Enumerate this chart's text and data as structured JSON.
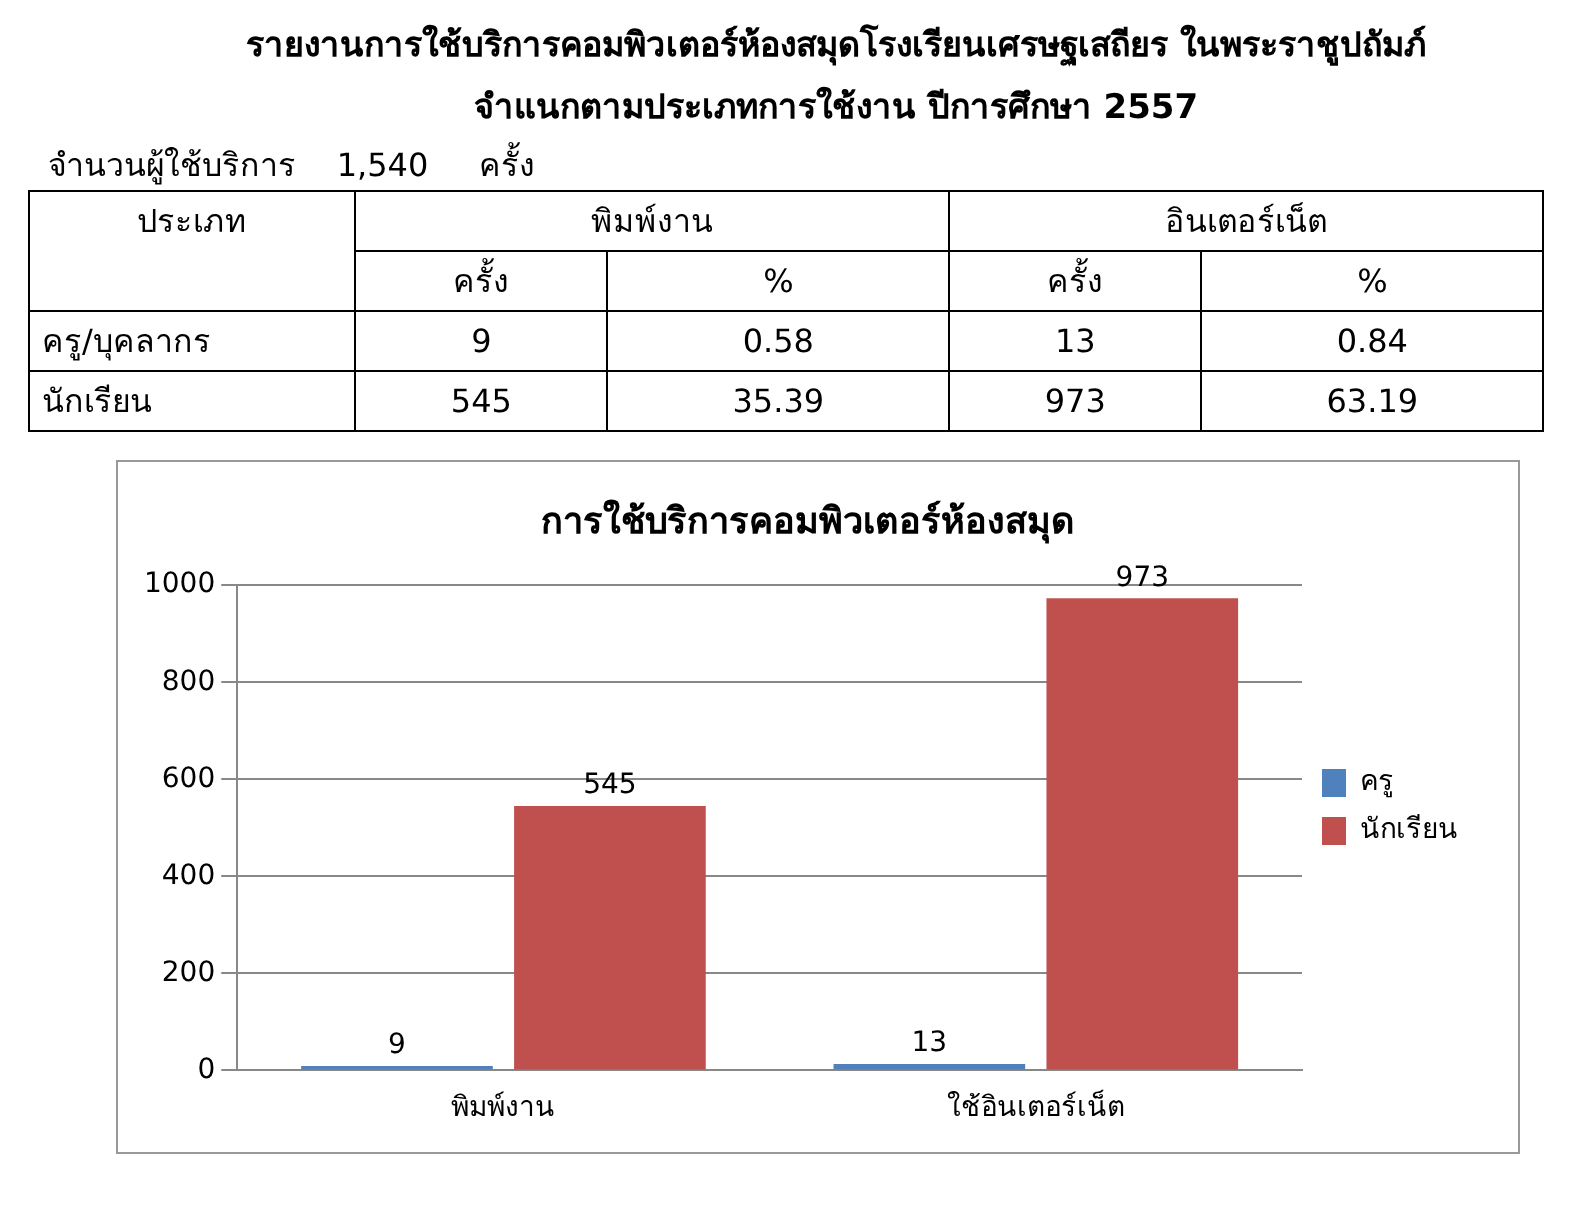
{
  "chart_data": [
    {
      "type": "other",
      "title": "รายงานการใช้บริการคอมพิวเตอร์ห้องสมุดโรงเรียนเศรษฐเสถียร  ในพระราชูปถัมภ์",
      "subtitle": "จำแนกตามประเภทการใช้งาน ปีการศึกษา 2557",
      "annotations": [
        "จำนวนผู้ใช้บริการ    1,540     ครั้ง",
        "ประเภท",
        "พิมพ์งาน",
        "อินเตอร์เน็ต",
        "ครั้ง",
        "%",
        "ครั้ง",
        "%",
        "ครู/บุคลากร",
        "9",
        "0.58",
        "13",
        "0.84",
        "นักเรียน",
        "545",
        "35.39",
        "973",
        "63.19"
      ]
    },
    {
      "type": "bar",
      "title": "การใช้บริการคอมพิวเตอร์ห้องสมุด",
      "categories": [
        "พิมพ์งาน",
        "ใช้อินเตอร์เน็ต"
      ],
      "series": [
        {
          "name": "ครู",
          "color": "#4f81bd",
          "values": [
            9,
            13
          ]
        },
        {
          "name": "นักเรียน",
          "color": "#c0504d",
          "values": [
            545,
            973
          ]
        }
      ],
      "ylim": [
        0,
        1000
      ],
      "yticks": [
        0,
        200,
        400,
        600,
        800,
        1000
      ],
      "grid": "y",
      "legend": "right",
      "data_labels": true
    }
  ]
}
